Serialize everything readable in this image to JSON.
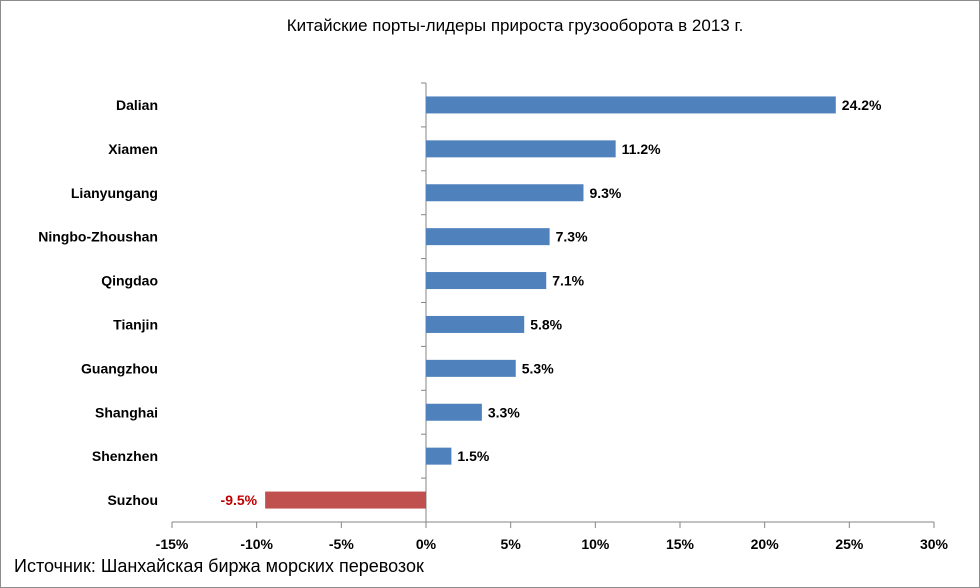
{
  "chart_data": {
    "type": "bar",
    "orientation": "horizontal",
    "title": "Китайские порты-лидеры прироста грузооборота в 2013 г.",
    "source": "Источник: Шанхайская биржа морских перевозок",
    "categories": [
      "Dalian",
      "Xiamen",
      "Lianyungang",
      "Ningbo-Zhoushan",
      "Qingdao",
      "Tianjin",
      "Guangzhou",
      "Shanghai",
      "Shenzhen",
      "Suzhou"
    ],
    "values": [
      24.2,
      11.2,
      9.3,
      7.3,
      7.1,
      5.8,
      5.3,
      3.3,
      1.5,
      -9.5
    ],
    "value_labels": [
      "24.2%",
      "11.2%",
      "9.3%",
      "7.3%",
      "7.1%",
      "5.8%",
      "5.3%",
      "3.3%",
      "1.5%",
      "-9.5%"
    ],
    "xlim": [
      -15,
      30
    ],
    "x_ticks": [
      -15,
      -10,
      -5,
      0,
      5,
      10,
      15,
      20,
      25,
      30
    ],
    "x_tick_labels": [
      "-15%",
      "-10%",
      "-5%",
      "0%",
      "5%",
      "10%",
      "15%",
      "20%",
      "25%",
      "30%"
    ],
    "grid": false,
    "colors": {
      "positive": "#4f81bd",
      "negative": "#c0504d",
      "negative_label": "#c00000",
      "axis": "#868686"
    }
  }
}
